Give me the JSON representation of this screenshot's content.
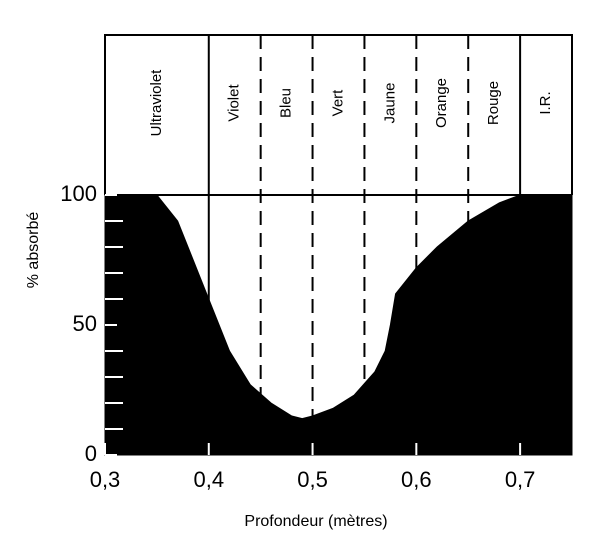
{
  "chart_data": {
    "type": "area",
    "xlabel": "Profondeur (mètres)",
    "ylabel": "% absorbé",
    "x": [
      0.3,
      0.35,
      0.37,
      0.39,
      0.4,
      0.42,
      0.44,
      0.46,
      0.48,
      0.49,
      0.5,
      0.52,
      0.54,
      0.56,
      0.57,
      0.575,
      0.58,
      0.6,
      0.62,
      0.65,
      0.68,
      0.7,
      0.75
    ],
    "values": [
      100,
      100,
      90,
      70,
      60,
      40,
      27,
      20,
      15,
      14,
      15,
      18,
      23,
      32,
      40,
      50,
      62,
      72,
      80,
      90,
      97,
      100,
      100
    ],
    "color": "#000000",
    "xlim": [
      0.3,
      0.75
    ],
    "ylim": [
      0,
      100
    ],
    "xticks": [
      {
        "value": 0.3,
        "label": "0,3"
      },
      {
        "value": 0.4,
        "label": "0,4"
      },
      {
        "value": 0.5,
        "label": "0,5"
      },
      {
        "value": 0.6,
        "label": "0,6"
      },
      {
        "value": 0.7,
        "label": "0,7"
      }
    ],
    "yticks": [
      0,
      50,
      100
    ],
    "minor_yticks": [
      10,
      20,
      30,
      40,
      60,
      70,
      80,
      90
    ],
    "bands": [
      {
        "label": "Ultraviolet",
        "start": 0.3,
        "end": 0.4
      },
      {
        "label": "Violet",
        "start": 0.4,
        "end": 0.45
      },
      {
        "label": "Bleu",
        "start": 0.45,
        "end": 0.5
      },
      {
        "label": "Vert",
        "start": 0.5,
        "end": 0.55
      },
      {
        "label": "Jaune",
        "start": 0.55,
        "end": 0.6
      },
      {
        "label": "Orange",
        "start": 0.6,
        "end": 0.65
      },
      {
        "label": "Rouge",
        "start": 0.65,
        "end": 0.7
      },
      {
        "label": "I.R.",
        "start": 0.7,
        "end": 0.75
      }
    ],
    "dividers": [
      0.4,
      0.45,
      0.5,
      0.55,
      0.6,
      0.65,
      0.7
    ],
    "divider_dashed": [
      false,
      true,
      true,
      true,
      true,
      true,
      false
    ]
  }
}
